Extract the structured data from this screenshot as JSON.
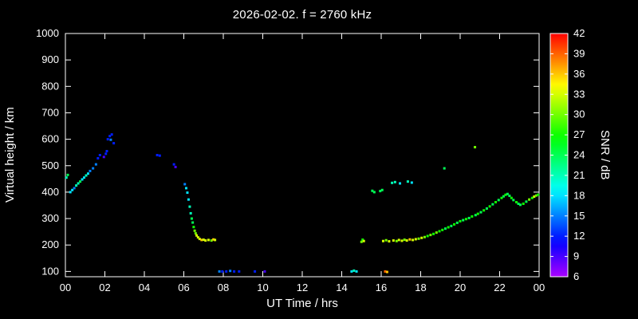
{
  "chart_data": {
    "type": "scatter",
    "title": "2026-02-02. f = 2760 kHz",
    "xlabel": "UT Time / hrs",
    "ylabel": "Virtual height / km",
    "xlim": [
      0,
      24
    ],
    "ylim": [
      80,
      1000
    ],
    "grid": false,
    "background": "#000000",
    "foreground": "#ffffff",
    "x_ticks": [
      {
        "v": 0,
        "label": "00"
      },
      {
        "v": 2,
        "label": "02"
      },
      {
        "v": 4,
        "label": "04"
      },
      {
        "v": 6,
        "label": "06"
      },
      {
        "v": 8,
        "label": "08"
      },
      {
        "v": 10,
        "label": "10"
      },
      {
        "v": 12,
        "label": "12"
      },
      {
        "v": 14,
        "label": "14"
      },
      {
        "v": 16,
        "label": "16"
      },
      {
        "v": 18,
        "label": "18"
      },
      {
        "v": 20,
        "label": "20"
      },
      {
        "v": 22,
        "label": "22"
      },
      {
        "v": 24,
        "label": "00"
      }
    ],
    "y_ticks": [
      {
        "v": 100,
        "label": "100"
      },
      {
        "v": 200,
        "label": "200"
      },
      {
        "v": 300,
        "label": "300"
      },
      {
        "v": 400,
        "label": "400"
      },
      {
        "v": 500,
        "label": "500"
      },
      {
        "v": 600,
        "label": "600"
      },
      {
        "v": 700,
        "label": "700"
      },
      {
        "v": 800,
        "label": "800"
      },
      {
        "v": 900,
        "label": "900"
      },
      {
        "v": 1000,
        "label": "1000"
      }
    ],
    "colorbar": {
      "label": "SNR / dB",
      "min": 6,
      "max": 42,
      "ticks": [
        6,
        9,
        12,
        15,
        18,
        21,
        24,
        27,
        30,
        33,
        36,
        39,
        42
      ],
      "scale": "rainbow: 6=violet, 12=blue, 18=cyan, 24=green, 30=yellow-green, 36=orange, 42=red"
    },
    "points": [
      [
        0.05,
        455,
        21
      ],
      [
        0.12,
        465,
        24
      ],
      [
        0.25,
        400,
        18
      ],
      [
        0.35,
        408,
        18
      ],
      [
        0.45,
        415,
        15
      ],
      [
        0.55,
        425,
        21
      ],
      [
        0.65,
        433,
        21
      ],
      [
        0.75,
        440,
        24
      ],
      [
        0.85,
        448,
        18
      ],
      [
        0.95,
        455,
        18
      ],
      [
        1.05,
        463,
        21
      ],
      [
        1.15,
        470,
        18
      ],
      [
        1.25,
        480,
        15
      ],
      [
        1.4,
        490,
        15
      ],
      [
        1.55,
        505,
        15
      ],
      [
        1.65,
        528,
        12
      ],
      [
        1.75,
        540,
        12
      ],
      [
        1.95,
        533,
        9
      ],
      [
        2.05,
        545,
        12
      ],
      [
        2.1,
        555,
        12
      ],
      [
        2.15,
        600,
        12
      ],
      [
        2.25,
        612,
        12
      ],
      [
        2.35,
        618,
        12
      ],
      [
        2.3,
        598,
        15
      ],
      [
        2.45,
        585,
        12
      ],
      [
        4.65,
        540,
        12
      ],
      [
        4.78,
        538,
        12
      ],
      [
        5.5,
        505,
        12
      ],
      [
        5.58,
        495,
        9
      ],
      [
        6.05,
        430,
        15
      ],
      [
        6.12,
        415,
        18
      ],
      [
        6.18,
        398,
        18
      ],
      [
        6.24,
        372,
        18
      ],
      [
        6.3,
        345,
        21
      ],
      [
        6.35,
        320,
        21
      ],
      [
        6.4,
        300,
        24
      ],
      [
        6.45,
        285,
        24
      ],
      [
        6.5,
        268,
        27
      ],
      [
        6.55,
        254,
        30
      ],
      [
        6.6,
        244,
        30
      ],
      [
        6.65,
        236,
        33
      ],
      [
        6.72,
        229,
        33
      ],
      [
        6.8,
        223,
        33
      ],
      [
        6.9,
        219,
        36
      ],
      [
        7.0,
        220,
        33
      ],
      [
        7.1,
        217,
        33
      ],
      [
        7.25,
        219,
        33
      ],
      [
        7.4,
        217,
        30
      ],
      [
        7.5,
        221,
        36
      ],
      [
        7.58,
        219,
        33
      ],
      [
        7.8,
        100,
        15
      ],
      [
        7.95,
        100,
        12
      ],
      [
        8.15,
        100,
        12
      ],
      [
        8.35,
        102,
        15
      ],
      [
        8.55,
        100,
        12
      ],
      [
        8.8,
        100,
        12
      ],
      [
        9.6,
        100,
        12
      ],
      [
        10.1,
        100,
        9
      ],
      [
        14.5,
        100,
        18
      ],
      [
        14.62,
        103,
        21
      ],
      [
        14.75,
        100,
        18
      ],
      [
        15.0,
        212,
        30
      ],
      [
        15.06,
        220,
        27
      ],
      [
        15.12,
        215,
        33
      ],
      [
        15.55,
        405,
        24
      ],
      [
        15.65,
        400,
        24
      ],
      [
        15.95,
        404,
        24
      ],
      [
        16.05,
        408,
        24
      ],
      [
        16.2,
        100,
        39
      ],
      [
        16.3,
        98,
        36
      ],
      [
        16.55,
        435,
        21
      ],
      [
        16.7,
        438,
        21
      ],
      [
        16.95,
        433,
        18
      ],
      [
        17.35,
        440,
        21
      ],
      [
        17.55,
        436,
        18
      ],
      [
        19.2,
        490,
        24
      ],
      [
        20.75,
        570,
        30
      ],
      [
        16.1,
        215,
        33
      ],
      [
        16.25,
        218,
        30
      ],
      [
        16.4,
        214,
        33
      ],
      [
        16.62,
        217,
        33
      ],
      [
        16.78,
        215,
        30
      ],
      [
        16.9,
        219,
        33
      ],
      [
        17.05,
        216,
        33
      ],
      [
        17.18,
        220,
        30
      ],
      [
        17.3,
        217,
        33
      ],
      [
        17.45,
        221,
        36
      ],
      [
        17.6,
        219,
        33
      ],
      [
        17.75,
        222,
        33
      ],
      [
        17.9,
        224,
        30
      ],
      [
        18.05,
        227,
        33
      ],
      [
        18.2,
        230,
        30
      ],
      [
        18.35,
        234,
        27
      ],
      [
        18.5,
        238,
        30
      ],
      [
        18.65,
        242,
        27
      ],
      [
        18.8,
        247,
        30
      ],
      [
        18.95,
        252,
        27
      ],
      [
        19.1,
        257,
        27
      ],
      [
        19.25,
        262,
        24
      ],
      [
        19.4,
        267,
        27
      ],
      [
        19.55,
        272,
        24
      ],
      [
        19.7,
        278,
        27
      ],
      [
        19.85,
        284,
        24
      ],
      [
        20.0,
        290,
        27
      ],
      [
        20.15,
        294,
        24
      ],
      [
        20.3,
        298,
        27
      ],
      [
        20.45,
        302,
        24
      ],
      [
        20.6,
        308,
        27
      ],
      [
        20.78,
        313,
        24
      ],
      [
        20.9,
        318,
        27
      ],
      [
        21.05,
        324,
        24
      ],
      [
        21.2,
        331,
        27
      ],
      [
        21.35,
        338,
        24
      ],
      [
        21.5,
        346,
        27
      ],
      [
        21.65,
        354,
        24
      ],
      [
        21.8,
        362,
        27
      ],
      [
        21.95,
        370,
        24
      ],
      [
        22.1,
        378,
        27
      ],
      [
        22.2,
        384,
        24
      ],
      [
        22.3,
        390,
        27
      ],
      [
        22.4,
        393,
        24
      ],
      [
        22.5,
        386,
        24
      ],
      [
        22.6,
        378,
        27
      ],
      [
        22.7,
        370,
        24
      ],
      [
        22.85,
        362,
        27
      ],
      [
        22.95,
        356,
        24
      ],
      [
        23.05,
        352,
        24
      ],
      [
        23.2,
        356,
        27
      ],
      [
        23.35,
        364,
        24
      ],
      [
        23.5,
        372,
        30
      ],
      [
        23.65,
        378,
        27
      ],
      [
        23.75,
        383,
        33
      ],
      [
        23.85,
        387,
        30
      ],
      [
        23.95,
        390,
        27
      ]
    ]
  }
}
